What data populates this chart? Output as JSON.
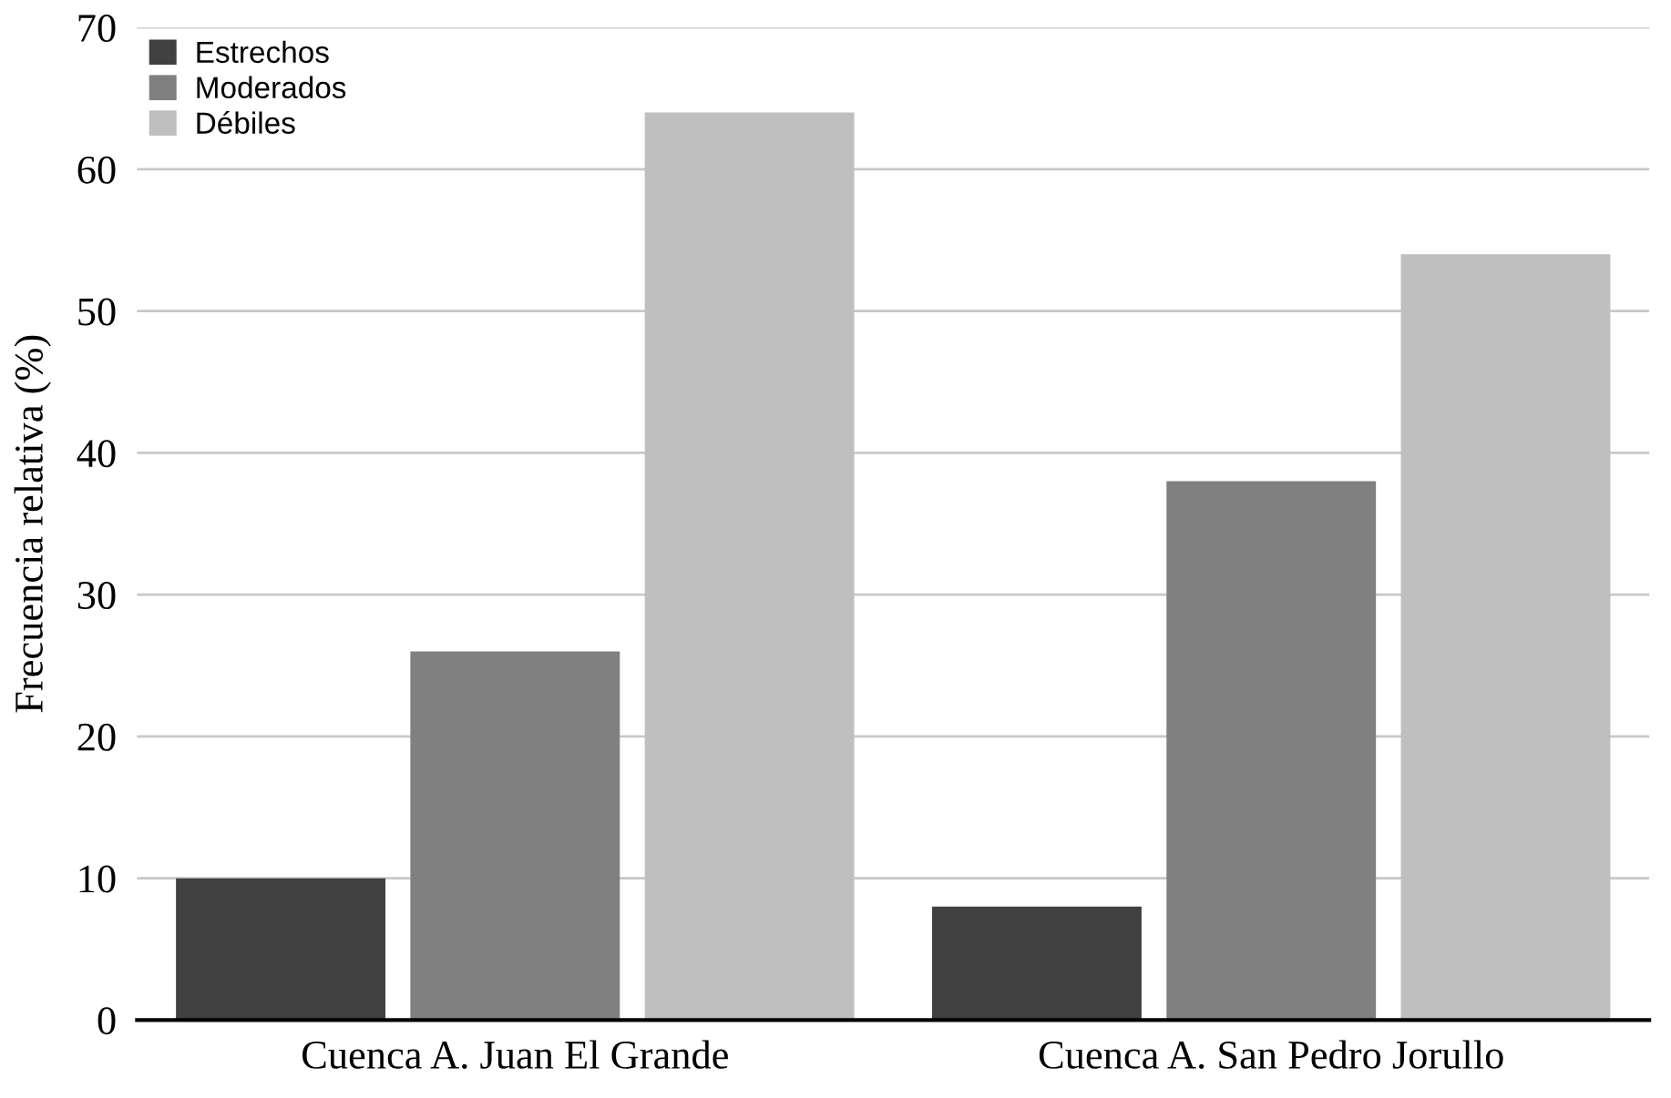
{
  "chart_data": {
    "type": "bar",
    "ylabel": "Frecuencia relativa (%)",
    "categories": [
      "Cuenca A. Juan El Grande",
      "Cuenca A. San Pedro Jorullo"
    ],
    "series": [
      {
        "name": "Estrechos",
        "color": "#404040",
        "values": [
          10,
          8
        ]
      },
      {
        "name": "Moderados",
        "color": "#808080",
        "values": [
          26,
          38
        ]
      },
      {
        "name": "Débiles",
        "color": "#bfbfbf",
        "values": [
          64,
          54
        ]
      }
    ],
    "ylim": [
      0,
      70
    ],
    "yticks": [
      0,
      10,
      20,
      30,
      40,
      50,
      60,
      70
    ],
    "grid": "y",
    "legend": "top left"
  }
}
